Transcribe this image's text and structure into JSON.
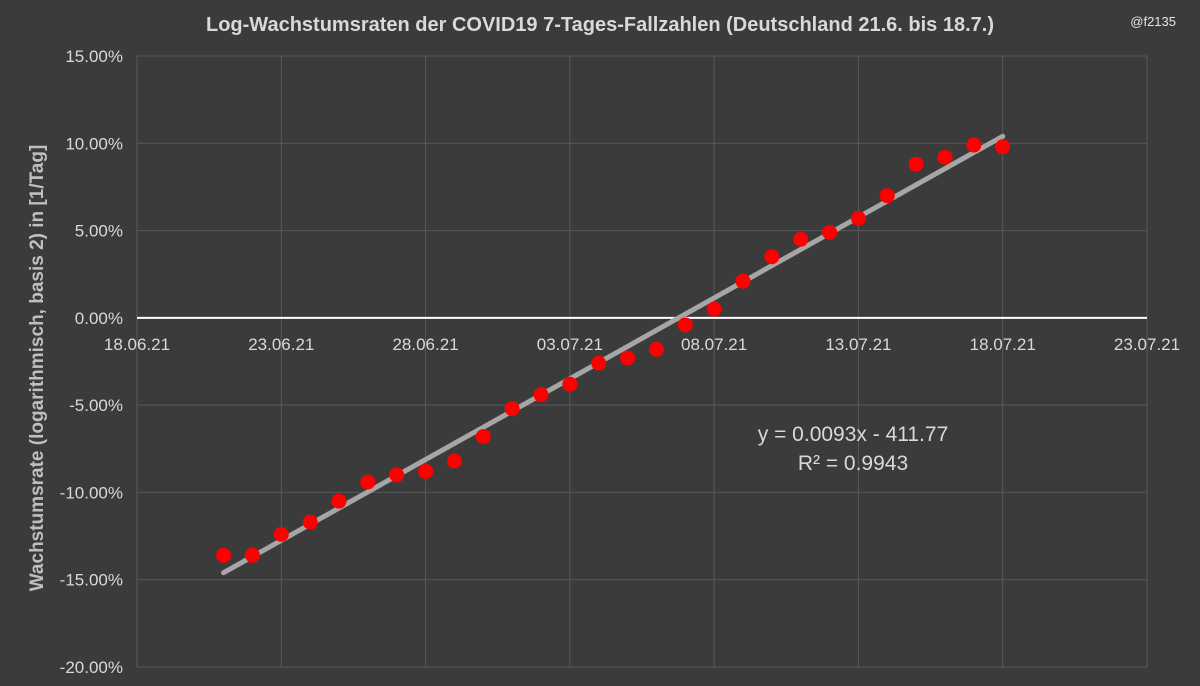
{
  "watermark": "@f2135",
  "chart_data": {
    "type": "scatter",
    "title": "Log-Wachstumsraten der COVID19 7-Tages-Fallzahlen (Deutschland 21.6. bis 18.7.)",
    "ylabel": "Wachstumsrate (logarithmisch, basis 2) in [1/Tag]",
    "xlabel": "",
    "x_axis": {
      "min": "2021-06-18",
      "max": "2021-07-23",
      "major_step_days": 5,
      "tick_labels": [
        "18.06.21",
        "23.06.21",
        "28.06.21",
        "03.07.21",
        "08.07.21",
        "13.07.21",
        "18.07.21",
        "23.07.21"
      ]
    },
    "y_axis": {
      "min": -0.2,
      "max": 0.15,
      "step": 0.05,
      "tick_labels": [
        "15.00%",
        "10.00%",
        "5.00%",
        "0.00%",
        "-5.00%",
        "-10.00%",
        "-15.00%",
        "-20.00%"
      ]
    },
    "grid": true,
    "colors": {
      "background": "#3b3b3b",
      "point": "#ff0000",
      "trendline": "#a6a6a6",
      "zero_line": "#ffffff",
      "grid": "#595959",
      "text": "#d9d9d9"
    },
    "series": [
      {
        "x": [
          "2021-06-21",
          "2021-06-22",
          "2021-06-23",
          "2021-06-24",
          "2021-06-25",
          "2021-06-26",
          "2021-06-27",
          "2021-06-28",
          "2021-06-29",
          "2021-06-30",
          "2021-07-01",
          "2021-07-02",
          "2021-07-03",
          "2021-07-04",
          "2021-07-05",
          "2021-07-06",
          "2021-07-07",
          "2021-07-08",
          "2021-07-09",
          "2021-07-10",
          "2021-07-11",
          "2021-07-12",
          "2021-07-13",
          "2021-07-14",
          "2021-07-15",
          "2021-07-16",
          "2021-07-17",
          "2021-07-18"
        ],
        "y": [
          -0.136,
          -0.136,
          -0.124,
          -0.117,
          -0.105,
          -0.094,
          -0.09,
          -0.088,
          -0.082,
          -0.068,
          -0.052,
          -0.044,
          -0.038,
          -0.026,
          -0.023,
          -0.018,
          -0.004,
          0.005,
          0.021,
          0.035,
          0.045,
          0.049,
          0.057,
          0.07,
          0.088,
          0.092,
          0.099,
          0.098
        ]
      }
    ],
    "trendline": {
      "type": "linear",
      "equation": "y = 0.0093x - 411.77",
      "r_squared": "R² = 0.9943",
      "x_start": "2021-06-21",
      "x_end": "2021-07-18",
      "y_start": -0.146,
      "y_end": 0.104
    }
  }
}
